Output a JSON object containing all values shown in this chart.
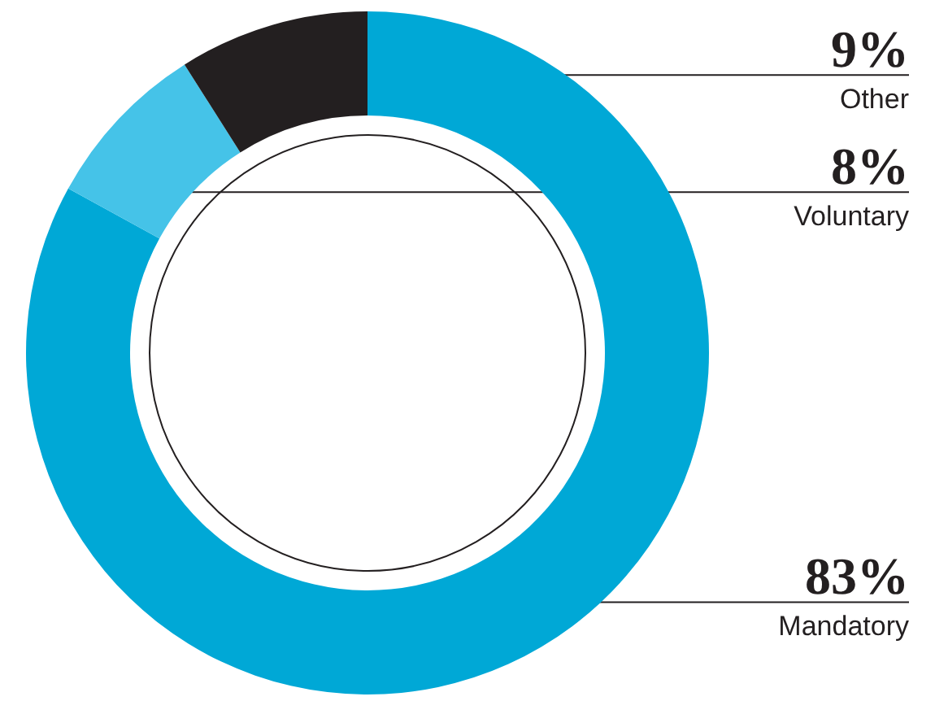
{
  "chart_data": {
    "type": "donut",
    "categories": [
      "Mandatory",
      "Voluntary",
      "Other"
    ],
    "values": [
      83,
      8,
      9
    ],
    "colors": [
      "#00a8d6",
      "#45c3e8",
      "#231f20"
    ],
    "value_labels": [
      "83%",
      "8%",
      "9%"
    ],
    "legend": false
  }
}
